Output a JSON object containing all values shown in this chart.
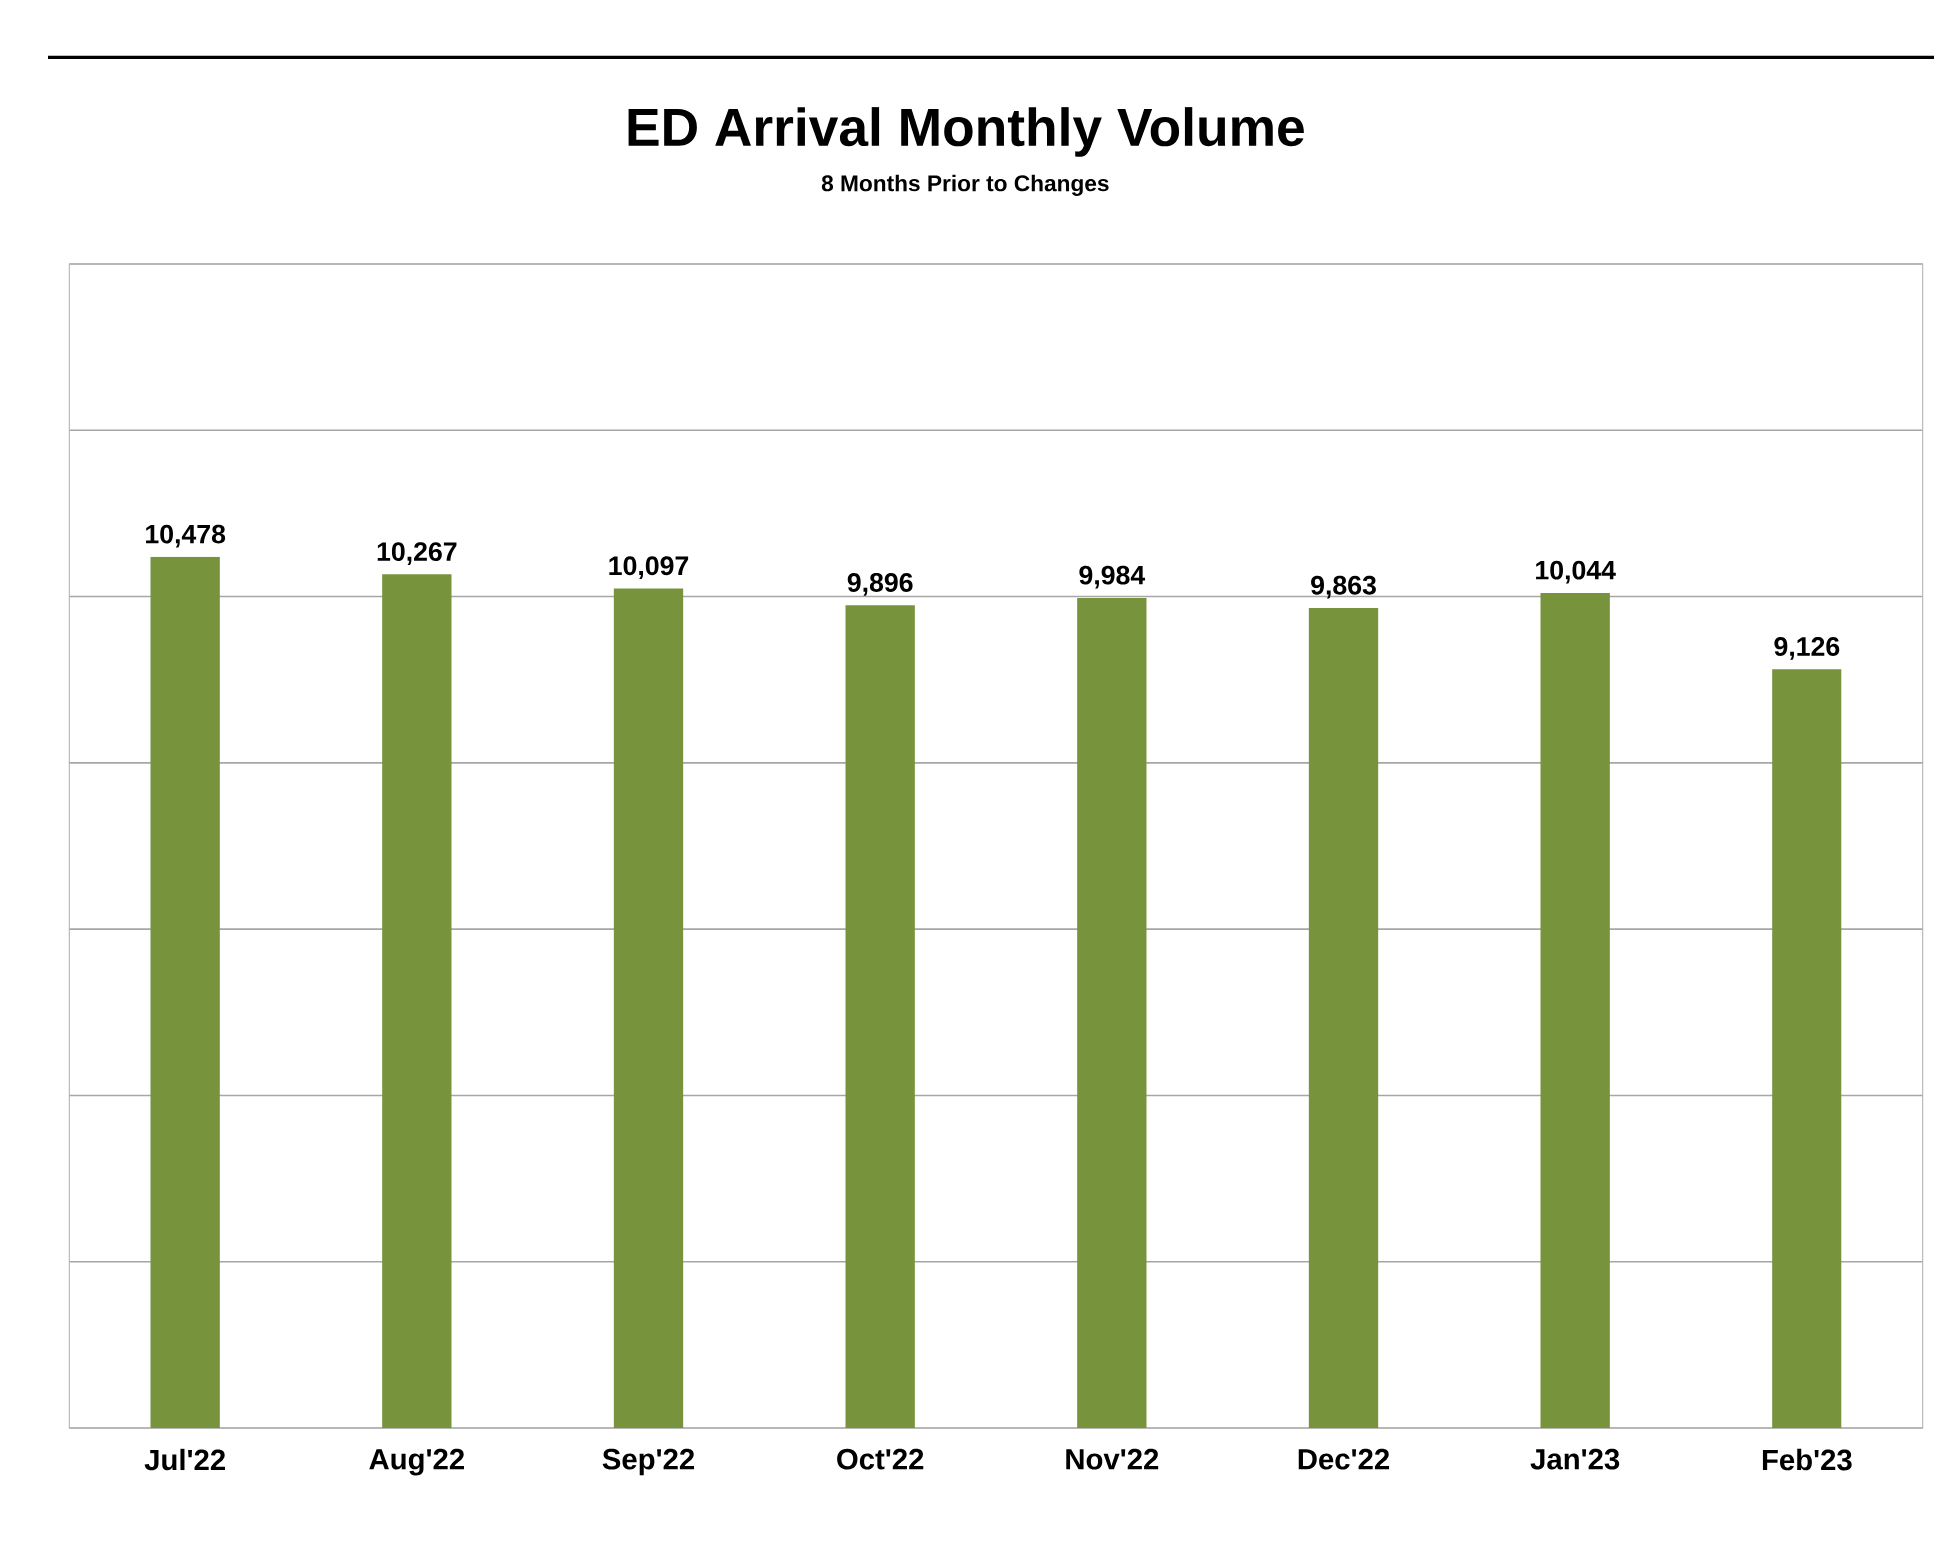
{
  "chart_data": {
    "type": "bar",
    "title": "ED Arrival Monthly Volume",
    "subtitle": "8 Months Prior to Changes",
    "categories": [
      "Jul'22",
      "Aug'22",
      "Sep'22",
      "Oct'22",
      "Nov'22",
      "Dec'22",
      "Jan'23",
      "Feb'23"
    ],
    "values": [
      10478,
      10267,
      10097,
      9896,
      9984,
      9863,
      10044,
      9126
    ],
    "value_labels": [
      "10,478",
      "10,267",
      "10,097",
      "9,896",
      "9,984",
      "9,863",
      "10,044",
      "9,126"
    ],
    "color": "#77933c",
    "ylim": [
      0,
      14000
    ],
    "yticks": [
      {
        "value": 0,
        "label": null
      },
      {
        "value": 2000,
        "label": null
      },
      {
        "value": 4000,
        "label": null
      },
      {
        "value": 6000,
        "label": null
      },
      {
        "value": 8000,
        "label": null
      },
      {
        "value": 10000,
        "label": null
      },
      {
        "value": 12000,
        "label": null
      },
      {
        "value": 14000,
        "label": null
      }
    ],
    "grid": "y",
    "tick_labels": "x"
  }
}
